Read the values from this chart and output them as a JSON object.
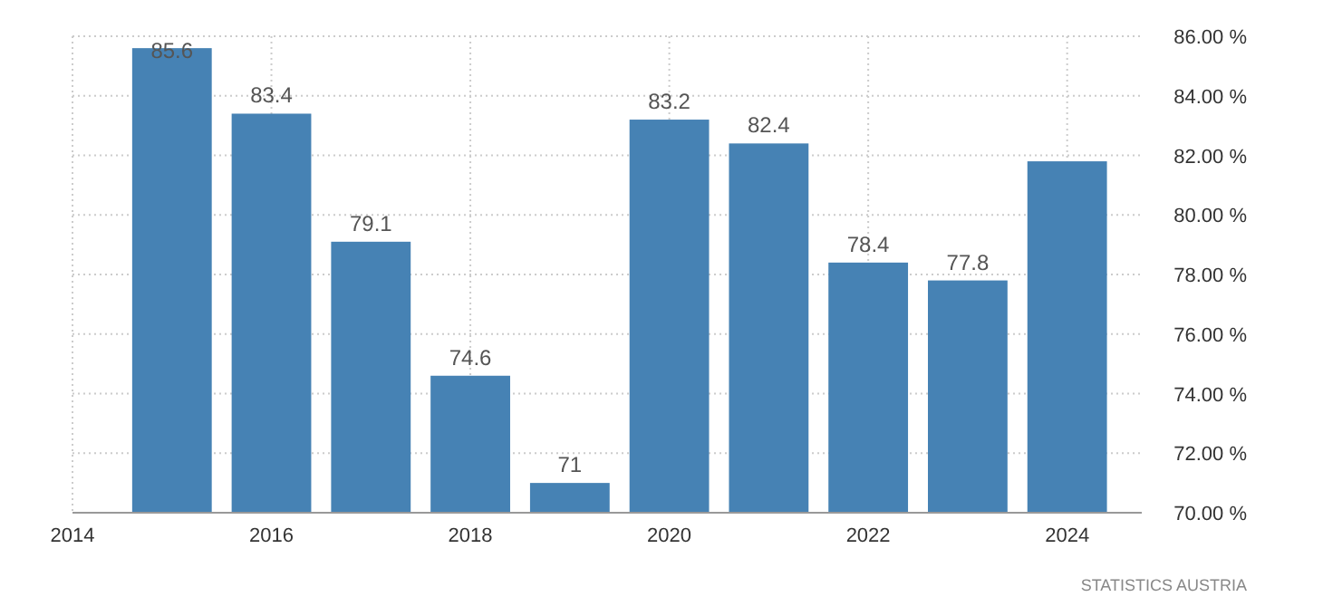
{
  "chart_data": {
    "type": "bar",
    "x": [
      2015,
      2016,
      2017,
      2018,
      2019,
      2020,
      2021,
      2022,
      2023,
      2024
    ],
    "values": [
      85.6,
      83.4,
      79.1,
      74.6,
      71,
      83.2,
      82.4,
      78.4,
      77.8,
      81.8
    ],
    "value_labels": [
      "85.6",
      "83.4",
      "79.1",
      "74.6",
      "71",
      "83.2",
      "82.4",
      "78.4",
      "77.8",
      null
    ],
    "color": "#4682b4",
    "xlim": [
      2014,
      2024.75
    ],
    "xticks": [
      2014,
      2016,
      2018,
      2020,
      2022,
      2024
    ],
    "ylim": [
      70,
      86
    ],
    "yticks": [
      {
        "value": 70,
        "label": "70.00 %"
      },
      {
        "value": 72,
        "label": "72.00 %"
      },
      {
        "value": 74,
        "label": "74.00 %"
      },
      {
        "value": 76,
        "label": "76.00 %"
      },
      {
        "value": 78,
        "label": "78.00 %"
      },
      {
        "value": 80,
        "label": "80.00 %"
      },
      {
        "value": 82,
        "label": "82.00 %"
      },
      {
        "value": 84,
        "label": "84.00 %"
      },
      {
        "value": 86,
        "label": "86.00 %"
      }
    ],
    "grid": true,
    "annotations": [
      "STATISTICS AUSTRIA"
    ]
  }
}
